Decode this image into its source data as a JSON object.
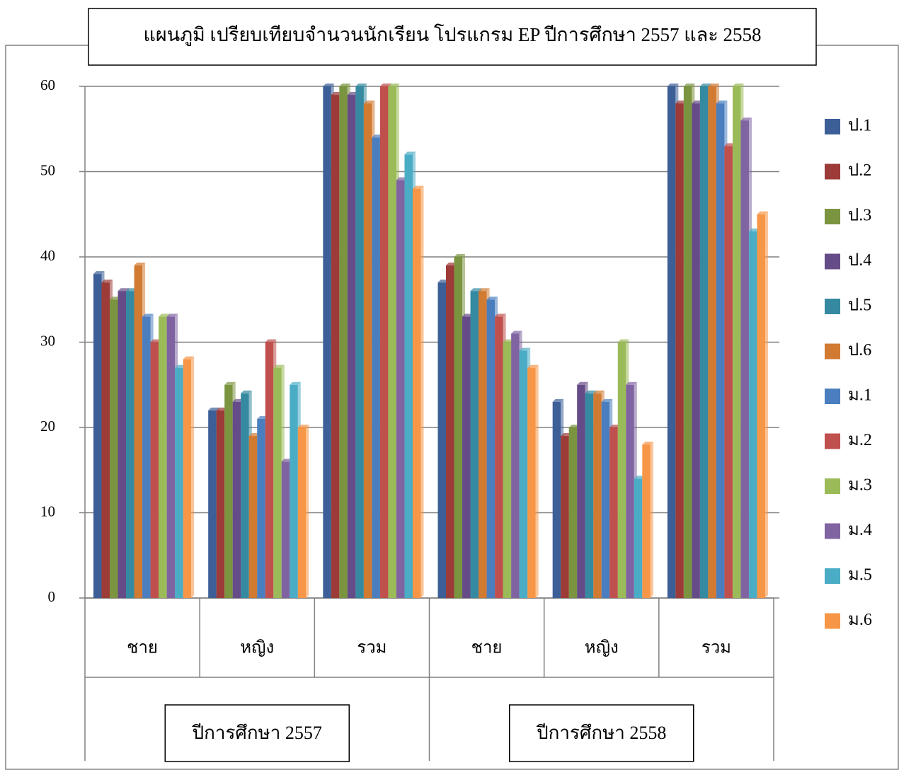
{
  "chart_data": {
    "type": "bar",
    "title": "แผนภูมิ เปรียบเทียบจำนวนนักเรียน โปรแกรม EP ปีการศึกษา 2557 และ 2558",
    "categories": [
      "ชาย",
      "หญิง",
      "รวม",
      "ชาย",
      "หญิง",
      "รวม"
    ],
    "groups": [
      "ปีการศึกษา 2557",
      "ปีการศึกษา 2558"
    ],
    "ylim": [
      0,
      60
    ],
    "yticks": [
      0,
      10,
      20,
      30,
      40,
      50,
      60
    ],
    "grid": true,
    "legend": "right",
    "series": [
      {
        "name": "ป.1",
        "color": "#3c5f97",
        "values": [
          38,
          22,
          60,
          37,
          23,
          60
        ]
      },
      {
        "name": "ป.2",
        "color": "#9c3b38",
        "values": [
          37,
          22,
          59,
          39,
          19,
          58
        ]
      },
      {
        "name": "ป.3",
        "color": "#7b9440",
        "values": [
          35,
          25,
          60,
          40,
          20,
          60
        ]
      },
      {
        "name": "ป.4",
        "color": "#654b87",
        "values": [
          36,
          23,
          59,
          33,
          25,
          58
        ]
      },
      {
        "name": "ป.5",
        "color": "#358aa1",
        "values": [
          36,
          24,
          60,
          36,
          24,
          60
        ]
      },
      {
        "name": "ป.6",
        "color": "#d17a32",
        "values": [
          39,
          19,
          58,
          36,
          24,
          60
        ]
      },
      {
        "name": "ม.1",
        "color": "#4a7ebf",
        "values": [
          33,
          21,
          54,
          35,
          23,
          58
        ]
      },
      {
        "name": "ม.2",
        "color": "#c0504d",
        "values": [
          30,
          30,
          60,
          33,
          20,
          53
        ]
      },
      {
        "name": "ม.3",
        "color": "#9bbb59",
        "values": [
          33,
          27,
          60,
          30,
          30,
          60
        ]
      },
      {
        "name": "ม.4",
        "color": "#8064a2",
        "values": [
          33,
          16,
          49,
          31,
          25,
          56
        ]
      },
      {
        "name": "ม.5",
        "color": "#4bacc6",
        "values": [
          27,
          25,
          52,
          29,
          14,
          43
        ]
      },
      {
        "name": "ม.6",
        "color": "#f79646",
        "values": [
          28,
          20,
          48,
          27,
          18,
          45
        ]
      }
    ]
  }
}
